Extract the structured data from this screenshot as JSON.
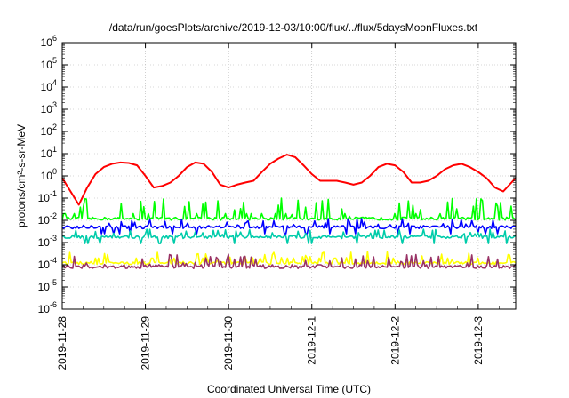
{
  "chart_data": {
    "type": "line",
    "title": "/data/run/goesPlots/archive/2019-12-03/10:00/flux/../flux/5daysMoonFluxes.txt",
    "xlabel": "Coordinated Universal Time (UTC)",
    "ylabel": "protons/cm²-s-sr-MeV",
    "y_scale": "log",
    "ylim_exp": [
      -6,
      6
    ],
    "y_ticks": [
      {
        "base": "10",
        "exp": "-6"
      },
      {
        "base": "10",
        "exp": "-5"
      },
      {
        "base": "10",
        "exp": "-4"
      },
      {
        "base": "10",
        "exp": "-3"
      },
      {
        "base": "10",
        "exp": "-2"
      },
      {
        "base": "10",
        "exp": "-1"
      },
      {
        "base": "10",
        "exp": "0"
      },
      {
        "base": "10",
        "exp": "1"
      },
      {
        "base": "10",
        "exp": "2"
      },
      {
        "base": "10",
        "exp": "3"
      },
      {
        "base": "10",
        "exp": "4"
      },
      {
        "base": "10",
        "exp": "5"
      },
      {
        "base": "10",
        "exp": "6"
      }
    ],
    "x_ticks": [
      "2019-11-28",
      "2019-11-29",
      "2019-11-30",
      "2019-12-1",
      "2019-12-2",
      "2019-12-3"
    ],
    "x_range_days": [
      0,
      5.45
    ],
    "grid": true,
    "series": [
      {
        "color": "#ff0000",
        "x": [
          0,
          0.1,
          0.2,
          0.3,
          0.4,
          0.5,
          0.6,
          0.7,
          0.8,
          0.9,
          1.0,
          1.1,
          1.2,
          1.3,
          1.4,
          1.5,
          1.6,
          1.7,
          1.8,
          1.9,
          2.0,
          2.1,
          2.2,
          2.3,
          2.4,
          2.5,
          2.6,
          2.7,
          2.8,
          2.9,
          3.0,
          3.1,
          3.2,
          3.3,
          3.4,
          3.5,
          3.6,
          3.7,
          3.8,
          3.9,
          4.0,
          4.1,
          4.2,
          4.3,
          4.4,
          4.5,
          4.6,
          4.7,
          4.8,
          4.9,
          5.0,
          5.1,
          5.2,
          5.3,
          5.4,
          5.45
        ],
        "y": [
          0.8,
          0.2,
          0.05,
          0.3,
          1.2,
          2.5,
          3.5,
          4.0,
          3.8,
          3.0,
          1.0,
          0.3,
          0.35,
          0.5,
          1.0,
          2.5,
          4.0,
          3.5,
          1.5,
          0.4,
          0.3,
          0.4,
          0.5,
          0.6,
          1.5,
          3.5,
          6.0,
          9.0,
          7.0,
          3.0,
          1.2,
          0.6,
          0.6,
          0.6,
          0.5,
          0.4,
          0.5,
          1.0,
          2.5,
          3.5,
          3.0,
          1.5,
          0.5,
          0.5,
          0.6,
          1.0,
          2.0,
          3.0,
          3.5,
          2.5,
          1.5,
          0.8,
          0.3,
          0.2,
          0.5,
          0.8
        ]
      },
      {
        "color": "#00ff00",
        "baseline": 0.012,
        "spikes": [
          0.02,
          0.05,
          0.1
        ]
      },
      {
        "color": "#0000ff",
        "baseline": 0.005,
        "spikes": [
          0.001,
          0.012
        ]
      },
      {
        "color": "#00ccaa",
        "baseline": 0.0018,
        "spikes": [
          0.0009,
          0.004
        ]
      },
      {
        "color": "#ffff00",
        "baseline": 0.00012,
        "spikes": [
          0.0002,
          0.0004
        ]
      },
      {
        "color": "#993366",
        "baseline": 8e-05,
        "spikes": [
          0.0001,
          0.0003
        ]
      }
    ]
  }
}
